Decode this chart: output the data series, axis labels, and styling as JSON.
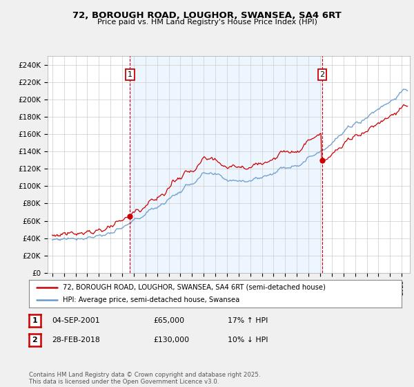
{
  "title_line1": "72, BOROUGH ROAD, LOUGHOR, SWANSEA, SA4 6RT",
  "title_line2": "Price paid vs. HM Land Registry's House Price Index (HPI)",
  "ylim": [
    0,
    250000
  ],
  "yticks": [
    0,
    20000,
    40000,
    60000,
    80000,
    100000,
    120000,
    140000,
    160000,
    180000,
    200000,
    220000,
    240000
  ],
  "ytick_labels": [
    "£0",
    "£20K",
    "£40K",
    "£60K",
    "£80K",
    "£100K",
    "£120K",
    "£140K",
    "£160K",
    "£180K",
    "£200K",
    "£220K",
    "£240K"
  ],
  "property_color": "#cc0000",
  "hpi_color": "#6699cc",
  "hpi_fill_color": "#ddeeff",
  "annotation1_year": 2001.67,
  "annotation1_price": 65000,
  "annotation2_year": 2018.17,
  "annotation2_price": 130000,
  "legend_property": "72, BOROUGH ROAD, LOUGHOR, SWANSEA, SA4 6RT (semi-detached house)",
  "legend_hpi": "HPI: Average price, semi-detached house, Swansea",
  "table_row1": [
    "1",
    "04-SEP-2001",
    "£65,000",
    "17% ↑ HPI"
  ],
  "table_row2": [
    "2",
    "28-FEB-2018",
    "£130,000",
    "10% ↓ HPI"
  ],
  "footer": "Contains HM Land Registry data © Crown copyright and database right 2025.\nThis data is licensed under the Open Government Licence v3.0.",
  "bg_color": "#f0f0f0",
  "plot_bg": "#ffffff"
}
